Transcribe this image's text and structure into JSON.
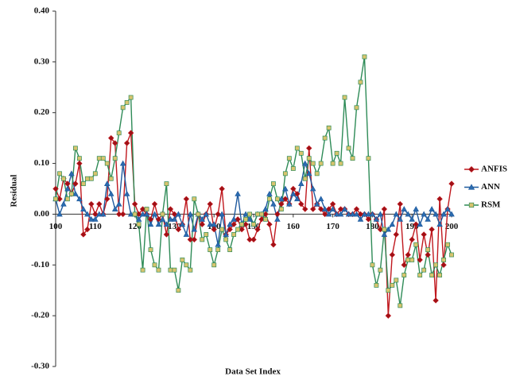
{
  "chart_data": {
    "type": "line",
    "y_label": "Residual",
    "x_label": "Data Set Index",
    "x": [
      100,
      101,
      102,
      103,
      104,
      105,
      106,
      107,
      108,
      109,
      110,
      111,
      112,
      113,
      114,
      115,
      116,
      117,
      118,
      119,
      120,
      121,
      122,
      123,
      124,
      125,
      126,
      127,
      128,
      129,
      130,
      131,
      132,
      133,
      134,
      135,
      136,
      137,
      138,
      139,
      140,
      141,
      142,
      143,
      144,
      145,
      146,
      147,
      148,
      149,
      150,
      151,
      152,
      153,
      154,
      155,
      156,
      157,
      158,
      159,
      160,
      161,
      162,
      163,
      164,
      165,
      166,
      167,
      168,
      169,
      170,
      171,
      172,
      173,
      174,
      175,
      176,
      177,
      178,
      179,
      180,
      181,
      182,
      183,
      184,
      185,
      186,
      187,
      188,
      189,
      190,
      191,
      192,
      193,
      194,
      195,
      196,
      197,
      198,
      199,
      200
    ],
    "xlim": [
      100,
      200
    ],
    "xticks": [
      100,
      110,
      120,
      130,
      140,
      150,
      160,
      170,
      180,
      190,
      200
    ],
    "ylim": [
      -0.3,
      0.4
    ],
    "yticks": [
      {
        "value": -0.3,
        "label": "-0.30"
      },
      {
        "value": -0.2,
        "label": "-0.20"
      },
      {
        "value": -0.1,
        "label": "-0.10"
      },
      {
        "value": 0,
        "label": "0.00"
      },
      {
        "value": 0.1,
        "label": "0.10"
      },
      {
        "value": 0.2,
        "label": "0.20"
      },
      {
        "value": 0.3,
        "label": "0.30"
      },
      {
        "value": 0.4,
        "label": "0.40"
      }
    ],
    "legend": "right",
    "series": [
      {
        "name": "ANFIS",
        "color": "#c0181e",
        "marker": "diamond",
        "marker_fill": "#9e1016",
        "values": [
          0.05,
          0.03,
          0.07,
          0.06,
          0.04,
          0.06,
          0.1,
          -0.04,
          -0.03,
          0.02,
          0.0,
          0.02,
          0.0,
          0.03,
          0.15,
          0.14,
          0.0,
          0.0,
          0.14,
          0.16,
          0.02,
          0.0,
          0.01,
          0.0,
          -0.01,
          0.02,
          -0.01,
          0.0,
          -0.04,
          0.01,
          0.0,
          -0.03,
          -0.02,
          0.03,
          -0.05,
          -0.05,
          0.0,
          -0.02,
          0.0,
          0.02,
          -0.03,
          0.0,
          0.05,
          -0.04,
          -0.03,
          -0.02,
          -0.01,
          -0.03,
          -0.02,
          -0.05,
          -0.05,
          -0.03,
          -0.01,
          0.0,
          -0.02,
          -0.06,
          0.0,
          0.02,
          0.03,
          0.02,
          0.05,
          0.04,
          0.02,
          0.01,
          0.13,
          0.01,
          0.02,
          0.01,
          0.0,
          0.01,
          0.02,
          0.0,
          0.01,
          0.01,
          0.0,
          0.0,
          0.01,
          0.0,
          0.0,
          -0.01,
          0.0,
          -0.01,
          -0.03,
          0.01,
          -0.2,
          -0.08,
          -0.04,
          0.02,
          -0.1,
          -0.08,
          -0.05,
          -0.02,
          -0.09,
          -0.04,
          -0.08,
          -0.03,
          -0.17,
          0.03,
          -0.1,
          0.01,
          0.06
        ]
      },
      {
        "name": "ANN",
        "color": "#1f5a9e",
        "marker": "triangle",
        "marker_fill": "#2b6cb0",
        "values": [
          0.03,
          0.0,
          0.02,
          0.05,
          0.08,
          0.04,
          0.03,
          0.01,
          0.0,
          -0.01,
          -0.01,
          0.0,
          0.0,
          0.06,
          0.04,
          0.01,
          0.02,
          0.1,
          0.04,
          0.0,
          0.0,
          -0.01,
          0.0,
          0.0,
          -0.02,
          0.0,
          -0.02,
          -0.01,
          -0.02,
          -0.01,
          -0.01,
          0.0,
          -0.02,
          -0.04,
          0.0,
          -0.03,
          0.0,
          -0.01,
          0.0,
          -0.02,
          -0.02,
          -0.06,
          0.0,
          -0.04,
          -0.02,
          -0.01,
          0.04,
          -0.02,
          0.0,
          -0.01,
          -0.02,
          0.0,
          0.0,
          0.01,
          0.04,
          0.02,
          -0.01,
          0.03,
          0.05,
          0.02,
          0.04,
          0.03,
          0.06,
          0.1,
          0.08,
          0.05,
          0.02,
          0.03,
          0.01,
          0.0,
          0.01,
          0.0,
          0.0,
          0.01,
          0.0,
          0.0,
          0.0,
          -0.01,
          0.0,
          0.0,
          0.0,
          -0.01,
          0.0,
          -0.04,
          -0.03,
          -0.02,
          0.0,
          -0.01,
          0.01,
          0.0,
          -0.01,
          0.01,
          -0.02,
          0.0,
          -0.01,
          0.01,
          0.0,
          -0.02,
          0.0,
          0.01,
          0.0
        ]
      },
      {
        "name": "RSM",
        "color": "#2e8b57",
        "marker": "square",
        "marker_fill": "#d8c46e",
        "values": [
          0.03,
          0.08,
          0.07,
          0.03,
          0.04,
          0.13,
          0.11,
          0.06,
          0.07,
          0.07,
          0.08,
          0.11,
          0.11,
          0.1,
          0.07,
          0.11,
          0.16,
          0.21,
          0.22,
          0.23,
          0.0,
          -0.02,
          -0.11,
          0.01,
          -0.07,
          -0.1,
          -0.11,
          0.0,
          0.06,
          -0.11,
          -0.11,
          -0.15,
          -0.09,
          -0.1,
          -0.11,
          0.03,
          0.0,
          -0.05,
          -0.04,
          -0.07,
          -0.1,
          -0.07,
          -0.03,
          -0.05,
          -0.07,
          -0.04,
          -0.03,
          -0.02,
          -0.01,
          0.0,
          -0.02,
          0.0,
          0.0,
          -0.01,
          0.03,
          0.06,
          0.03,
          0.01,
          0.08,
          0.11,
          0.09,
          0.13,
          0.12,
          0.07,
          0.11,
          0.1,
          0.08,
          0.1,
          0.15,
          0.17,
          0.1,
          0.12,
          0.1,
          0.23,
          0.13,
          0.11,
          0.21,
          0.26,
          0.31,
          0.11,
          -0.1,
          -0.14,
          -0.11,
          -0.03,
          -0.15,
          -0.14,
          -0.13,
          -0.18,
          -0.12,
          -0.09,
          -0.09,
          -0.06,
          -0.12,
          -0.11,
          -0.07,
          -0.12,
          -0.1,
          -0.12,
          -0.09,
          -0.06,
          -0.08
        ]
      }
    ]
  }
}
